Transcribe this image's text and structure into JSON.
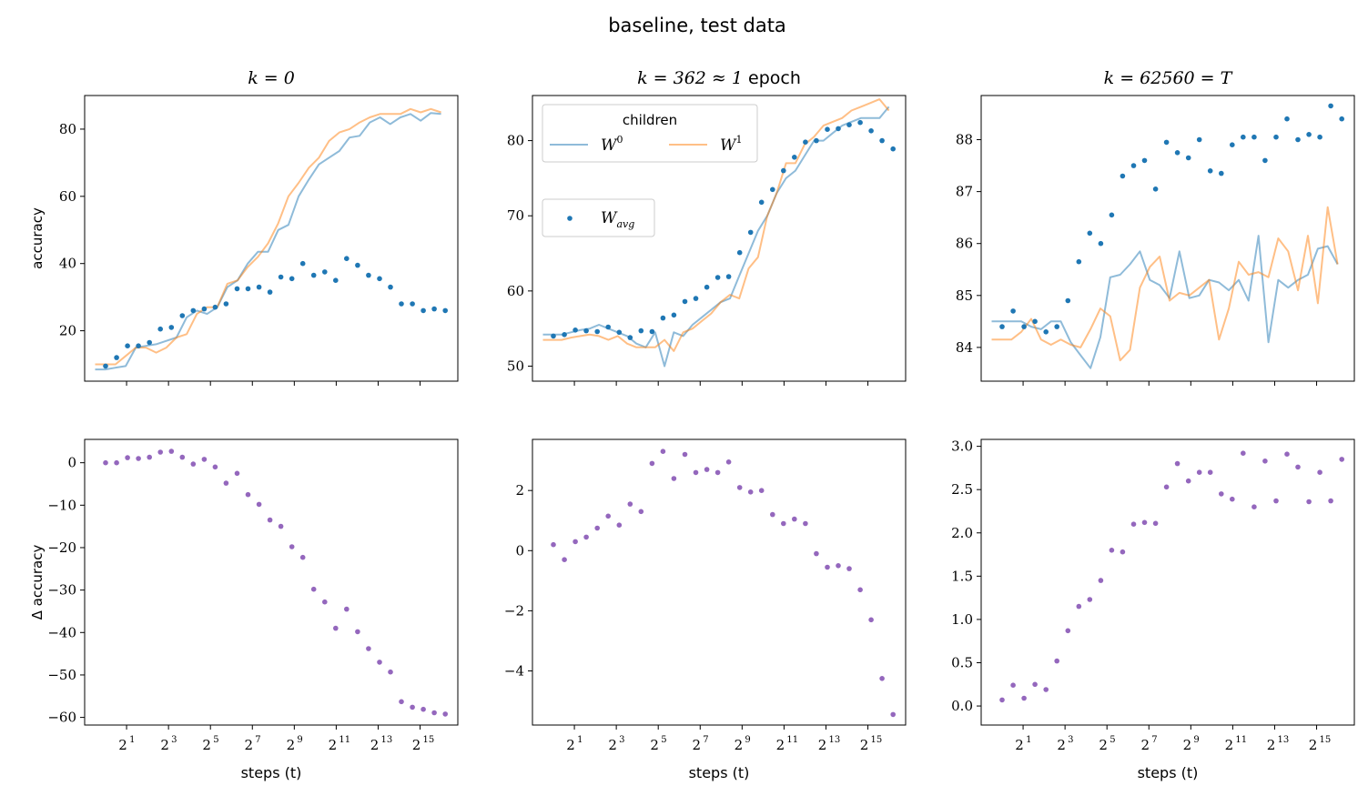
{
  "figure_title": "baseline, test data",
  "colors": {
    "w0": "#1f77b4",
    "w1": "#ff7f0e",
    "avg": "#1f77b4",
    "delta": "#9467bd"
  },
  "x_tick_labels": [
    "2",
    "2",
    "2",
    "2",
    "2",
    "2",
    "2",
    "2"
  ],
  "x_tick_exponents": [
    "1",
    "3",
    "5",
    "7",
    "9",
    "11",
    "13",
    "15"
  ],
  "legend": {
    "title": "children",
    "w0_label": "W",
    "w0_sup": "0",
    "w1_label": "W",
    "w1_sup": "1",
    "avg_label": "W",
    "avg_sub": "avg"
  },
  "chart_data": [
    {
      "type": "line",
      "title_parts": [
        "k = 0"
      ],
      "title_suffix": "",
      "ylabel": "accuracy",
      "xlabel": "",
      "x_scale": "log2",
      "xlim_exp": [
        -1,
        16.8
      ],
      "ylim": [
        5,
        90
      ],
      "yticks": [
        20,
        40,
        60,
        80
      ],
      "ytick_labels": [
        "20",
        "40",
        "60",
        "80"
      ],
      "legend_placement": "none",
      "series": [
        {
          "role": "w0",
          "values": [
            8.5,
            8.5,
            9,
            9.5,
            15,
            15.5,
            16,
            17,
            18,
            24,
            26,
            25,
            27,
            33,
            35,
            40,
            43.5,
            43.5,
            50,
            51.5,
            60,
            65,
            69.5,
            71.5,
            73.5,
            77.5,
            78,
            82,
            83.5,
            81.5,
            83.5,
            84.5,
            82.5,
            84.8,
            84.5
          ]
        },
        {
          "role": "w1",
          "values": [
            10,
            10,
            10,
            12.5,
            15,
            15,
            13.5,
            15,
            18,
            19,
            25,
            27,
            27,
            34,
            35,
            39,
            42,
            46,
            52,
            60,
            64,
            68.5,
            71.5,
            76.5,
            79,
            80,
            82,
            83.5,
            84.5,
            84.5,
            84.5,
            86,
            85,
            86,
            85
          ]
        },
        {
          "role": "avg",
          "values": [
            9.5,
            12,
            15.5,
            15.5,
            16.5,
            20.5,
            21,
            24.5,
            26,
            26.5,
            27,
            28,
            32.5,
            32.5,
            33,
            31.5,
            36,
            35.5,
            40,
            36.5,
            37.5,
            35,
            41.5,
            39.5,
            36.5,
            35.5,
            33,
            28,
            28,
            26,
            26.5,
            26
          ]
        }
      ]
    },
    {
      "type": "line",
      "title_parts": [
        "k = 362 ≈ 1"
      ],
      "title_suffix": " epoch",
      "ylabel": "",
      "xlabel": "",
      "x_scale": "log2",
      "xlim_exp": [
        -1,
        16.8
      ],
      "ylim": [
        48,
        86
      ],
      "yticks": [
        50,
        60,
        70,
        80
      ],
      "ytick_labels": [
        "50",
        "60",
        "70",
        "80"
      ],
      "legend_placement": "upper-left",
      "series": [
        {
          "role": "w0",
          "values": [
            54.2,
            54.2,
            54.2,
            54.5,
            54.8,
            55,
            55.5,
            55,
            54.5,
            54,
            53,
            52.5,
            54.5,
            50,
            54.5,
            54,
            55.5,
            56.5,
            57.5,
            58.5,
            59,
            62,
            65,
            68,
            70,
            73,
            75,
            76,
            78,
            80,
            80,
            81,
            82,
            82.5,
            83,
            83,
            83,
            84.5
          ]
        },
        {
          "role": "w1",
          "values": [
            53.5,
            53.5,
            53.5,
            53.8,
            54,
            54.2,
            54,
            53.5,
            54,
            53,
            52.5,
            52.5,
            52.5,
            53.5,
            52,
            54.5,
            55,
            56,
            57,
            58.5,
            59.5,
            59,
            63,
            64.5,
            70,
            73,
            77,
            77,
            79.5,
            80.5,
            82,
            82.5,
            83,
            84,
            84.5,
            85,
            85.5,
            84
          ]
        },
        {
          "role": "avg",
          "values": [
            54,
            54.2,
            54.8,
            54.7,
            54.6,
            55.2,
            54.5,
            53.8,
            54.7,
            54.6,
            56.4,
            56.8,
            58.6,
            59,
            60.5,
            61.8,
            61.9,
            65.1,
            67.8,
            71.8,
            73.5,
            76,
            77.8,
            79.8,
            80,
            81.5,
            81.6,
            82.1,
            82.4,
            81.3,
            80,
            78.9
          ]
        }
      ]
    },
    {
      "type": "line",
      "title_parts": [
        "k = 62560 = T"
      ],
      "title_suffix": "",
      "ylabel": "",
      "xlabel": "",
      "x_scale": "log2",
      "xlim_exp": [
        -1,
        16.8
      ],
      "ylim": [
        83.35,
        88.85
      ],
      "yticks": [
        84,
        85,
        86,
        87,
        88
      ],
      "ytick_labels": [
        "84",
        "85",
        "86",
        "87",
        "88"
      ],
      "legend_placement": "none",
      "series": [
        {
          "role": "w0",
          "values": [
            84.5,
            84.5,
            84.5,
            84.5,
            84.4,
            84.35,
            84.5,
            84.5,
            84.1,
            83.85,
            83.6,
            84.2,
            85.35,
            85.4,
            85.6,
            85.85,
            85.3,
            85.2,
            84.95,
            85.85,
            84.95,
            85,
            85.3,
            85.25,
            85.1,
            85.3,
            84.9,
            86.15,
            84.1,
            85.3,
            85.15,
            85.3,
            85.4,
            85.9,
            85.95,
            85.6
          ]
        },
        {
          "role": "w1",
          "values": [
            84.15,
            84.15,
            84.15,
            84.3,
            84.55,
            84.15,
            84.05,
            84.15,
            84.05,
            84.0,
            84.35,
            84.75,
            84.6,
            83.75,
            83.95,
            85.15,
            85.55,
            85.75,
            84.9,
            85.05,
            85.0,
            85.15,
            85.3,
            84.15,
            84.75,
            85.65,
            85.4,
            85.45,
            85.35,
            86.1,
            85.85,
            85.1,
            86.15,
            84.85,
            86.7,
            85.6
          ]
        },
        {
          "role": "avg",
          "values": [
            84.4,
            84.7,
            84.4,
            84.5,
            84.3,
            84.4,
            84.9,
            85.65,
            86.2,
            86.0,
            86.55,
            87.3,
            87.5,
            87.6,
            87.05,
            87.95,
            87.75,
            87.65,
            88.0,
            87.4,
            87.35,
            87.9,
            88.05,
            88.05,
            87.6,
            88.05,
            88.4,
            88.0,
            88.1,
            88.05,
            88.65,
            88.4
          ]
        }
      ]
    },
    {
      "type": "scatter",
      "title_parts": [
        ""
      ],
      "title_suffix": "",
      "ylabel": "Δ accuracy",
      "xlabel": "steps (t)",
      "x_scale": "log2",
      "xlim_exp": [
        -1,
        16.8
      ],
      "ylim": [
        -61.8,
        5.5
      ],
      "yticks": [
        0,
        -10,
        -20,
        -30,
        -40,
        -50,
        -60
      ],
      "ytick_labels": [
        "0",
        "−10",
        "−20",
        "−30",
        "−40",
        "−50",
        "−60"
      ],
      "legend_placement": "none",
      "series": [
        {
          "role": "delta",
          "values": [
            0,
            0,
            1.2,
            1,
            1.3,
            2.5,
            2.7,
            1.3,
            -0.3,
            0.8,
            -1,
            -4.8,
            -2.5,
            -7.5,
            -9.8,
            -13.5,
            -15,
            -19.8,
            -22.3,
            -29.8,
            -32.8,
            -39,
            -34.5,
            -39.8,
            -43.8,
            -47,
            -49.3,
            -56.3,
            -57.6,
            -58.1,
            -58.9,
            -59.2
          ]
        }
      ]
    },
    {
      "type": "scatter",
      "title_parts": [
        ""
      ],
      "title_suffix": "",
      "ylabel": "",
      "xlabel": "steps (t)",
      "x_scale": "log2",
      "xlim_exp": [
        -1,
        16.8
      ],
      "ylim": [
        -5.8,
        3.7
      ],
      "yticks": [
        2,
        0,
        -2,
        -4
      ],
      "ytick_labels": [
        "2",
        "0",
        "−2",
        "−4"
      ],
      "legend_placement": "none",
      "series": [
        {
          "role": "delta",
          "values": [
            0.2,
            -0.3,
            0.3,
            0.45,
            0.75,
            1.15,
            0.85,
            1.55,
            1.3,
            2.9,
            3.3,
            2.4,
            3.2,
            2.6,
            2.7,
            2.6,
            2.95,
            2.1,
            1.95,
            2,
            1.2,
            0.9,
            1.05,
            0.9,
            -0.1,
            -0.55,
            -0.5,
            -0.6,
            -1.3,
            -2.3,
            -4.25,
            -5.45
          ]
        }
      ]
    },
    {
      "type": "scatter",
      "title_parts": [
        ""
      ],
      "title_suffix": "",
      "ylabel": "",
      "xlabel": "steps (t)",
      "x_scale": "log2",
      "xlim_exp": [
        -1,
        16.8
      ],
      "ylim": [
        -0.22,
        3.08
      ],
      "yticks": [
        0.0,
        0.5,
        1.0,
        1.5,
        2.0,
        2.5,
        3.0
      ],
      "ytick_labels": [
        "0.0",
        "0.5",
        "1.0",
        "1.5",
        "2.0",
        "2.5",
        "3.0"
      ],
      "legend_placement": "none",
      "series": [
        {
          "role": "delta",
          "values": [
            0.07,
            0.24,
            0.09,
            0.25,
            0.19,
            0.52,
            0.87,
            1.15,
            1.23,
            1.45,
            1.8,
            1.78,
            2.1,
            2.12,
            2.11,
            2.53,
            2.8,
            2.6,
            2.7,
            2.7,
            2.45,
            2.39,
            2.92,
            2.3,
            2.83,
            2.37,
            2.91,
            2.76,
            2.36,
            2.7,
            2.37,
            2.85
          ]
        }
      ]
    }
  ]
}
